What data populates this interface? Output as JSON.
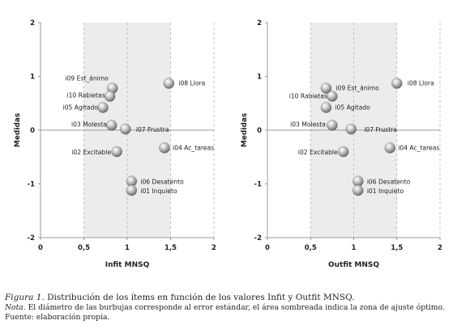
{
  "chart_data": [
    {
      "type": "scatter",
      "xlabel": "Infit MNSQ",
      "ylabel": "Medidas",
      "xlim": [
        0,
        2
      ],
      "ylim": [
        -2,
        2
      ],
      "xticks": [
        "0",
        "0,5",
        "1",
        "1,5",
        "2"
      ],
      "yticks": [
        "2",
        "1",
        "0",
        "-1",
        "-2"
      ],
      "shaded_band": [
        0.5,
        1.5
      ],
      "grid": "vertical dashed",
      "points": [
        {
          "label": "i09 Est_ánimo",
          "x": 0.83,
          "y": 0.78
        },
        {
          "label": "i08 Llora",
          "x": 1.48,
          "y": 0.87
        },
        {
          "label": "i10 Rabietas",
          "x": 0.8,
          "y": 0.63
        },
        {
          "label": "i05 Agitado",
          "x": 0.72,
          "y": 0.42
        },
        {
          "label": "i03 Molesta",
          "x": 0.82,
          "y": 0.09
        },
        {
          "label": "i07 Frustra",
          "x": 0.98,
          "y": 0.02
        },
        {
          "label": "i04 Ac_tareas",
          "x": 1.43,
          "y": -0.33
        },
        {
          "label": "i02 Excitable",
          "x": 0.88,
          "y": -0.4
        },
        {
          "label": "i06 Desatento",
          "x": 1.05,
          "y": -0.95
        },
        {
          "label": "i01 Inquieto",
          "x": 1.05,
          "y": -1.12
        }
      ]
    },
    {
      "type": "scatter",
      "xlabel": "Outfit MNSQ",
      "ylabel": "Medidas",
      "xlim": [
        0,
        2
      ],
      "ylim": [
        -2,
        2
      ],
      "xticks": [
        "0",
        "0,5",
        "1",
        "1,5",
        "2"
      ],
      "yticks": [
        "2",
        "1",
        "0",
        "-1",
        "-2"
      ],
      "shaded_band": [
        0.5,
        1.5
      ],
      "grid": "vertical dashed",
      "points": [
        {
          "label": "i09 Est_ánimo",
          "x": 0.68,
          "y": 0.78
        },
        {
          "label": "i08 Llora",
          "x": 1.5,
          "y": 0.87
        },
        {
          "label": "i10 Rabietas",
          "x": 0.75,
          "y": 0.63
        },
        {
          "label": "i05 Agitado",
          "x": 0.68,
          "y": 0.42
        },
        {
          "label": "i03 Molesta",
          "x": 0.75,
          "y": 0.09
        },
        {
          "label": "i07 Frustra",
          "x": 0.97,
          "y": 0.02
        },
        {
          "label": "i04 Ac_tareas",
          "x": 1.42,
          "y": -0.33
        },
        {
          "label": "i02 Excitable",
          "x": 0.88,
          "y": -0.4
        },
        {
          "label": "i06 Desatento",
          "x": 1.05,
          "y": -0.95
        },
        {
          "label": "i01 Inquieto",
          "x": 1.05,
          "y": -1.12
        }
      ]
    }
  ],
  "caption": {
    "figure_label": "Figura 1",
    "title": ". Distribución de los ítems en función de los valores Infit y Outfit MNSQ.",
    "note_label": "Nota",
    "note": ". El diámetro de las burbujas corresponde al error estándar, el área sombreada indica la zona de ajuste óptimo.",
    "source": "Fuente: elaboración propia."
  }
}
